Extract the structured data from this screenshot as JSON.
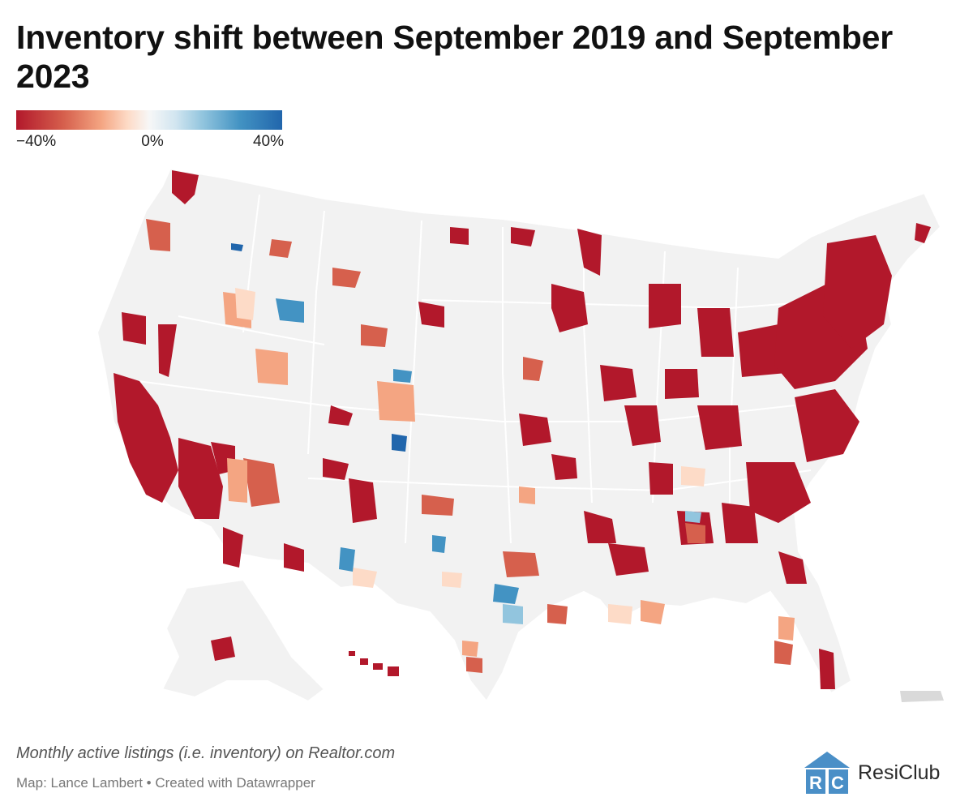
{
  "title": "Inventory shift between September 2019 and September 2023",
  "legend": {
    "min_label": "−40%",
    "mid_label": "0%",
    "max_label": "40%",
    "colors": [
      "#b2182b",
      "#d6604d",
      "#f4a582",
      "#fddbc7",
      "#f7f7f7",
      "#d1e5f0",
      "#92c5de",
      "#4393c3",
      "#2166ac"
    ]
  },
  "map": {
    "type": "choropleth",
    "variable": "percent change in monthly active listings",
    "range": [
      -40,
      40
    ],
    "regions_shown": [
      "contiguous US",
      "Alaska",
      "Hawaii",
      "Puerto Rico"
    ]
  },
  "footer": {
    "note": "Monthly active listings (i.e. inventory) on Realtor.com",
    "byline": "Map: Lance Lambert • Created with Datawrapper"
  },
  "logo": {
    "text": "ResiClub",
    "mark": "RC",
    "color": "#4a8fc7"
  }
}
